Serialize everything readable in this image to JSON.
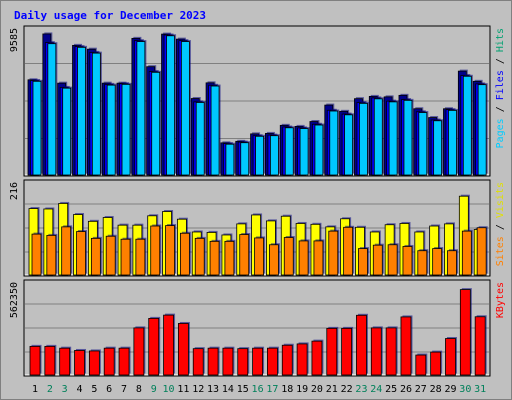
{
  "title": "Daily usage for December 2023",
  "panels": {
    "hits": {
      "ymax_label": "9585",
      "legend": [
        {
          "text": "Pages",
          "color": "#00ccff"
        },
        {
          "text": " / ",
          "color": "#000000"
        },
        {
          "text": "Files",
          "color": "#0000ff"
        },
        {
          "text": " / ",
          "color": "#000000"
        },
        {
          "text": "Hits",
          "color": "#00a070"
        }
      ]
    },
    "visits": {
      "ymax_label": "216",
      "legend": [
        {
          "text": "Sites",
          "color": "#ff8000"
        },
        {
          "text": " / ",
          "color": "#000000"
        },
        {
          "text": "Visits",
          "color": "#e0e000"
        }
      ]
    },
    "kbytes": {
      "ymax_label": "562350",
      "legend": [
        {
          "text": "KBytes",
          "color": "#ff0000"
        }
      ]
    }
  },
  "colors": {
    "hits": "#00008b",
    "files": "#0000ff",
    "pages": "#00c8ff",
    "visits": "#ffff00",
    "sites": "#ff8000",
    "kbytes": "#ff0000",
    "weekday": "#000000",
    "weekend": "#00805a"
  },
  "chart_data": {
    "type": "bar",
    "title": "Daily usage for December 2023",
    "categories": [
      "1",
      "2",
      "3",
      "4",
      "5",
      "6",
      "7",
      "8",
      "9",
      "10",
      "11",
      "12",
      "13",
      "14",
      "15",
      "16",
      "17",
      "18",
      "19",
      "20",
      "21",
      "22",
      "23",
      "24",
      "25",
      "26",
      "27",
      "28",
      "29",
      "30",
      "31"
    ],
    "weekend_days": [
      "2",
      "3",
      "9",
      "10",
      "16",
      "17",
      "23",
      "24",
      "30",
      "31"
    ],
    "ylim_hits": [
      0,
      9585
    ],
    "ylim_visits": [
      0,
      216
    ],
    "ylim_kbytes": [
      0,
      562350
    ],
    "series": [
      {
        "name": "Hits",
        "values": [
          6250,
          9260,
          6030,
          8510,
          8260,
          6030,
          6030,
          8970,
          7110,
          9250,
          8920,
          5020,
          6050,
          2110,
          2210,
          2700,
          2730,
          3260,
          3190,
          3510,
          4590,
          4180,
          5010,
          5160,
          5130,
          5230,
          4350,
          3770,
          4350,
          6820,
          6150
        ]
      },
      {
        "name": "Files",
        "values": [
          6200,
          8690,
          5750,
          8430,
          8050,
          5950,
          5990,
          8820,
          6790,
          9190,
          8820,
          4800,
          5890,
          2060,
          2160,
          2580,
          2620,
          3150,
          3090,
          3330,
          4250,
          4000,
          4760,
          5060,
          4850,
          4950,
          4150,
          3610,
          4290,
          6530,
          5980
        ]
      },
      {
        "name": "Pages",
        "values": [
          6150,
          8620,
          5700,
          8380,
          8000,
          5900,
          5950,
          8760,
          6740,
          9140,
          8760,
          4760,
          5840,
          2020,
          2120,
          2540,
          2580,
          3100,
          3050,
          3280,
          4200,
          3950,
          4700,
          5000,
          4800,
          4900,
          4100,
          3560,
          4240,
          6480,
          5930
        ]
      },
      {
        "name": "Visits",
        "values": [
          156,
          155,
          168,
          142,
          126,
          135,
          117,
          117,
          139,
          149,
          131,
          101,
          100,
          94,
          120,
          141,
          127,
          138,
          121,
          119,
          113,
          132,
          112,
          101,
          118,
          121,
          101,
          115,
          120,
          185,
          107
        ]
      },
      {
        "name": "Sites",
        "values": [
          96,
          93,
          113,
          102,
          86,
          91,
          84,
          84,
          115,
          116,
          98,
          86,
          79,
          79,
          95,
          87,
          71,
          88,
          80,
          80,
          103,
          112,
          62,
          70,
          71,
          67,
          57,
          62,
          57,
          103,
          111
        ]
      },
      {
        "name": "KBytes",
        "values": [
          175000,
          175000,
          164000,
          150000,
          147000,
          164000,
          164000,
          288000,
          346000,
          366000,
          315000,
          161000,
          164000,
          164000,
          161000,
          164000,
          164000,
          182000,
          190000,
          207000,
          285000,
          285000,
          365000,
          288000,
          288000,
          355000,
          122000,
          140000,
          223000,
          522000,
          356000
        ]
      }
    ]
  }
}
